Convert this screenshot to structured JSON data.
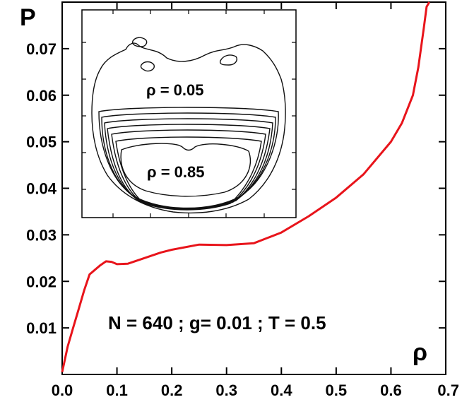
{
  "chart_data": {
    "type": "line",
    "ylabel": "P",
    "xlabel": "ρ",
    "xlim": [
      0.0,
      0.7
    ],
    "ylim": [
      0.0,
      0.08
    ],
    "x_ticks": [
      "0.0",
      "0.1",
      "0.2",
      "0.3",
      "0.4",
      "0.5",
      "0.6",
      "0.7"
    ],
    "y_ticks": [
      "0.01",
      "0.02",
      "0.03",
      "0.04",
      "0.05",
      "0.06",
      "0.07"
    ],
    "grid": false,
    "series": [
      {
        "color": "#e8141b",
        "x": [
          0.0,
          0.01,
          0.02,
          0.03,
          0.04,
          0.05,
          0.06,
          0.07,
          0.08,
          0.09,
          0.1,
          0.12,
          0.15,
          0.18,
          0.2,
          0.25,
          0.3,
          0.35,
          0.4,
          0.45,
          0.5,
          0.55,
          0.6,
          0.62,
          0.64,
          0.65,
          0.66,
          0.665,
          0.67
        ],
        "y": [
          0.0005,
          0.006,
          0.01,
          0.014,
          0.018,
          0.0215,
          0.0225,
          0.0235,
          0.0243,
          0.0242,
          0.0237,
          0.0238,
          0.025,
          0.0262,
          0.0268,
          0.0279,
          0.0278,
          0.0282,
          0.0305,
          0.034,
          0.038,
          0.043,
          0.05,
          0.054,
          0.06,
          0.066,
          0.0745,
          0.079,
          0.083
        ]
      }
    ],
    "annotation": "N = 640 ; g= 0.01 ; T = 0.5",
    "inset": {
      "type": "contour",
      "labels": [
        "ρ = 0.05",
        "ρ = 0.85"
      ]
    }
  }
}
